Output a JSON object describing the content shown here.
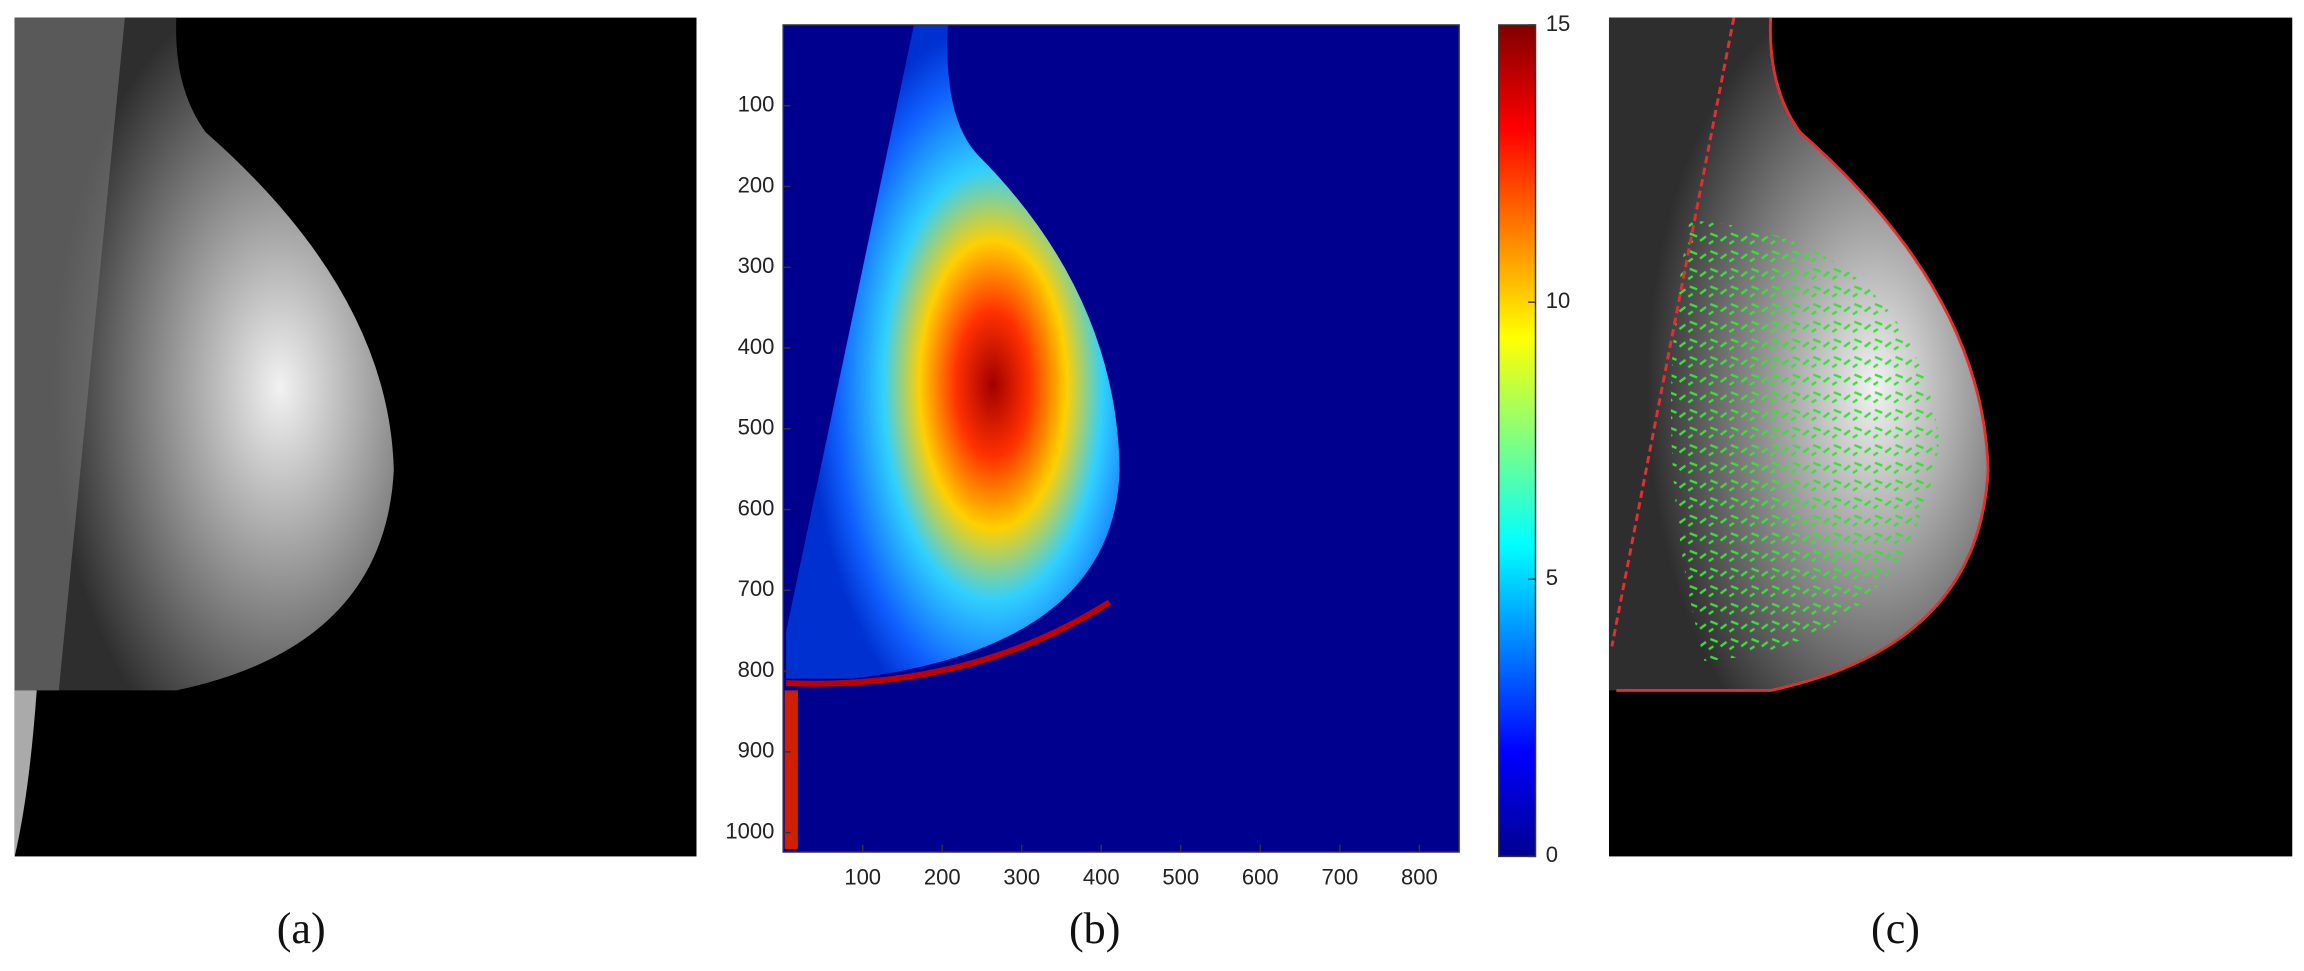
{
  "panels": {
    "a": {
      "label": "(a)"
    },
    "b": {
      "label": "(b)",
      "xlim": [
        0,
        850
      ],
      "xticks": [
        100,
        200,
        300,
        400,
        500,
        600,
        700,
        800
      ],
      "ylim": [
        0,
        1024
      ],
      "yticks": [
        100,
        200,
        300,
        400,
        500,
        600,
        700,
        800,
        900,
        1000
      ],
      "colorbar": {
        "lim": [
          0,
          15
        ],
        "ticks": [
          0,
          5,
          10,
          15
        ]
      }
    },
    "c": {
      "label": "(c)"
    }
  }
}
